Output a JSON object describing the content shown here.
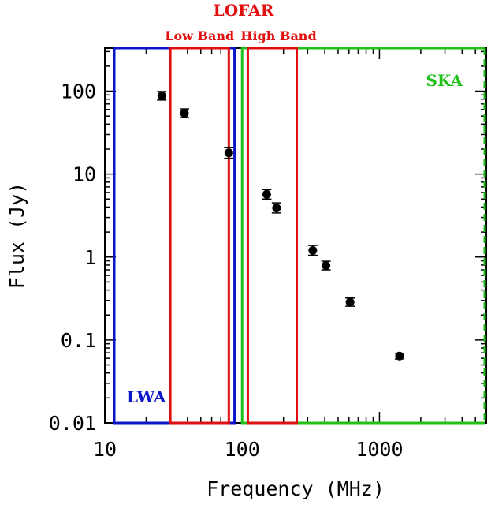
{
  "chart_data": {
    "type": "scatter",
    "xlabel": "Frequency (MHz)",
    "ylabel": "Flux (Jy)",
    "xscale": "log",
    "yscale": "log",
    "xlim": [
      10,
      6000
    ],
    "ylim": [
      0.01,
      330
    ],
    "x_ticks": [
      {
        "value": 10,
        "label": "10"
      },
      {
        "value": 100,
        "label": "100"
      },
      {
        "value": 1000,
        "label": "1000"
      }
    ],
    "y_ticks": [
      {
        "value": 0.01,
        "label": "0.01"
      },
      {
        "value": 0.1,
        "label": "0.1"
      },
      {
        "value": 1,
        "label": "1"
      },
      {
        "value": 10,
        "label": "10"
      },
      {
        "value": 100,
        "label": "100"
      }
    ],
    "series": [
      {
        "points": [
          {
            "x": 26,
            "y": 88,
            "err": [
              78,
              99
            ]
          },
          {
            "x": 38,
            "y": 54,
            "err": [
              48,
              61
            ]
          },
          {
            "x": 80,
            "y": 18,
            "err": [
              15.5,
              21
            ]
          },
          {
            "x": 151,
            "y": 5.7,
            "err": [
              5.0,
              6.5
            ]
          },
          {
            "x": 178,
            "y": 3.9,
            "err": [
              3.4,
              4.5
            ]
          },
          {
            "x": 327,
            "y": 1.2,
            "err": [
              1.05,
              1.38
            ]
          },
          {
            "x": 408,
            "y": 0.79,
            "err": [
              0.7,
              0.89
            ]
          },
          {
            "x": 611,
            "y": 0.285,
            "err": [
              0.255,
              0.32
            ]
          },
          {
            "x": 1400,
            "y": 0.064,
            "err": [
              0.059,
              0.069
            ]
          }
        ]
      }
    ],
    "regions": [
      {
        "label": "LWA",
        "x_range": [
          10,
          88
        ],
        "color": "#0b16c8",
        "label_position": "bottom-left"
      },
      {
        "label": "Low Band",
        "x_range": [
          30,
          80
        ],
        "color": "#e01010",
        "label_position": "above"
      },
      {
        "label": "High Band",
        "x_range": [
          110,
          250
        ],
        "color": "#e01010",
        "label_position": "above"
      },
      {
        "label": "SKA",
        "x_range": [
          100,
          6000
        ],
        "color": "#22c01a",
        "label_position": "top-right"
      }
    ],
    "group_title": {
      "label": "LOFAR",
      "color": "#e01010"
    }
  }
}
